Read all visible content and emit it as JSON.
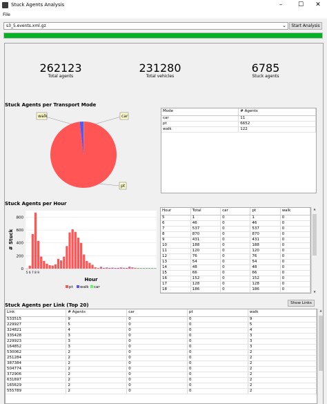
{
  "window": {
    "title": "Stuck Agents Analysis"
  },
  "menu": {
    "file": "File"
  },
  "toolbar": {
    "file_value": "s3_5.events.xml.gz",
    "start_label": "Start Analysis",
    "progress_percent": 100
  },
  "stats": {
    "total_agents": {
      "value": "262123",
      "label": "Total agents"
    },
    "total_vehicles": {
      "value": "231280",
      "label": "Total vehicles"
    },
    "stuck_agents": {
      "value": "6785",
      "label": "Stuck agents"
    }
  },
  "mode_section": {
    "title": "Stuck Agents per Transport Mode",
    "labels": {
      "walk": "walk",
      "car": "car",
      "pt": "pt"
    },
    "headers": [
      "Mode",
      "# Agents"
    ],
    "rows": [
      [
        "car",
        "11"
      ],
      [
        "pt",
        "6652"
      ],
      [
        "walk",
        "122"
      ]
    ]
  },
  "hour_section": {
    "title": "Stuck Agents per Hour",
    "headers": [
      "Hour",
      "Total",
      "car",
      "pt",
      "walk"
    ],
    "rows": [
      [
        "5",
        "1",
        "0",
        "1",
        "0"
      ],
      [
        "6",
        "46",
        "0",
        "46",
        "0"
      ],
      [
        "7",
        "537",
        "0",
        "537",
        "0"
      ],
      [
        "8",
        "870",
        "0",
        "870",
        "0"
      ],
      [
        "9",
        "431",
        "0",
        "431",
        "0"
      ],
      [
        "10",
        "188",
        "0",
        "188",
        "0"
      ],
      [
        "11",
        "120",
        "0",
        "120",
        "0"
      ],
      [
        "12",
        "76",
        "0",
        "76",
        "0"
      ],
      [
        "13",
        "54",
        "0",
        "54",
        "0"
      ],
      [
        "14",
        "48",
        "0",
        "48",
        "0"
      ],
      [
        "15",
        "66",
        "0",
        "66",
        "0"
      ],
      [
        "16",
        "152",
        "0",
        "152",
        "0"
      ],
      [
        "17",
        "128",
        "0",
        "128",
        "0"
      ],
      [
        "18",
        "186",
        "0",
        "186",
        "0"
      ]
    ]
  },
  "link_section": {
    "title": "Stuck Agents per Link (Top 20)",
    "show_links_label": "Show Links",
    "headers": [
      "Link",
      "# Agents",
      "car",
      "pt",
      "walk"
    ],
    "rows": [
      [
        "533515",
        "9",
        "0",
        "0",
        "9"
      ],
      [
        "229927",
        "5",
        "0",
        "0",
        "5"
      ],
      [
        "324821",
        "4",
        "0",
        "0",
        "4"
      ],
      [
        "335428",
        "3",
        "0",
        "0",
        "3"
      ],
      [
        "229923",
        "3",
        "0",
        "0",
        "3"
      ],
      [
        "164852",
        "3",
        "0",
        "0",
        "3"
      ],
      [
        "530062",
        "2",
        "0",
        "0",
        "2"
      ],
      [
        "251284",
        "2",
        "0",
        "0",
        "2"
      ],
      [
        "387384",
        "2",
        "0",
        "0",
        "2"
      ],
      [
        "504774",
        "2",
        "0",
        "0",
        "2"
      ],
      [
        "372906",
        "2",
        "0",
        "0",
        "2"
      ],
      [
        "631697",
        "2",
        "0",
        "0",
        "2"
      ],
      [
        "165629",
        "2",
        "0",
        "0",
        "2"
      ],
      [
        "555789",
        "2",
        "0",
        "0",
        "2"
      ]
    ]
  },
  "colors": {
    "pt": "#ff5555",
    "walk": "#5555ff",
    "car": "#55ff55",
    "progress": "#06b025"
  },
  "chart_data": [
    {
      "type": "pie",
      "categories": [
        "car",
        "pt",
        "walk"
      ],
      "values": [
        11,
        6652,
        122
      ],
      "labels": [
        "car",
        "pt",
        "walk"
      ]
    },
    {
      "type": "bar",
      "stacked": true,
      "xlabel": "Hour",
      "ylabel": "# Stuck",
      "ylim": [
        0,
        900
      ],
      "yticks": [
        0,
        200,
        400,
        600,
        800
      ],
      "x_tick_labels": [
        "5",
        "6",
        "7",
        "8",
        "9"
      ],
      "categories": [
        "5",
        "6",
        "7",
        "8",
        "9",
        "10",
        "11",
        "12",
        "13",
        "14",
        "15",
        "16",
        "17",
        "18",
        "19",
        "20",
        "21",
        "22",
        "23",
        "24",
        "25",
        "26",
        "27",
        "28",
        "29",
        "30",
        "31",
        "32",
        "33",
        "34",
        "35",
        "36",
        "37",
        "38",
        "39",
        "40",
        "41",
        "42",
        "43",
        "44",
        "45",
        "46",
        "47",
        "48",
        "49",
        "50"
      ],
      "series": [
        {
          "name": "pt",
          "values": [
            1,
            46,
            537,
            870,
            431,
            188,
            120,
            76,
            54,
            48,
            66,
            152,
            128,
            186,
            350,
            560,
            610,
            570,
            480,
            400,
            220,
            120,
            90,
            60,
            20,
            10,
            25,
            10,
            15,
            8,
            12,
            8,
            10,
            15,
            10,
            8,
            25,
            15,
            10,
            8,
            5,
            5,
            5,
            5,
            5,
            5
          ]
        },
        {
          "name": "walk",
          "values": [
            0,
            0,
            0,
            0,
            0,
            0,
            0,
            0,
            0,
            0,
            0,
            0,
            0,
            0,
            0,
            0,
            0,
            0,
            0,
            0,
            0,
            0,
            0,
            0,
            0,
            0,
            2,
            2,
            2,
            2,
            2,
            2,
            2,
            2,
            3,
            3,
            4,
            3,
            3,
            3,
            3,
            3,
            3,
            3,
            3,
            3
          ]
        },
        {
          "name": "car",
          "values": [
            0,
            0,
            0,
            0,
            0,
            0,
            0,
            0,
            0,
            0,
            0,
            0,
            0,
            0,
            0,
            0,
            0,
            0,
            0,
            0,
            0,
            0,
            0,
            0,
            0,
            0,
            0,
            0,
            0,
            0,
            0,
            0,
            0,
            0,
            0,
            0,
            0,
            0,
            1,
            1,
            1,
            1,
            1,
            1,
            1,
            1
          ]
        }
      ],
      "legend": "bottom"
    }
  ]
}
